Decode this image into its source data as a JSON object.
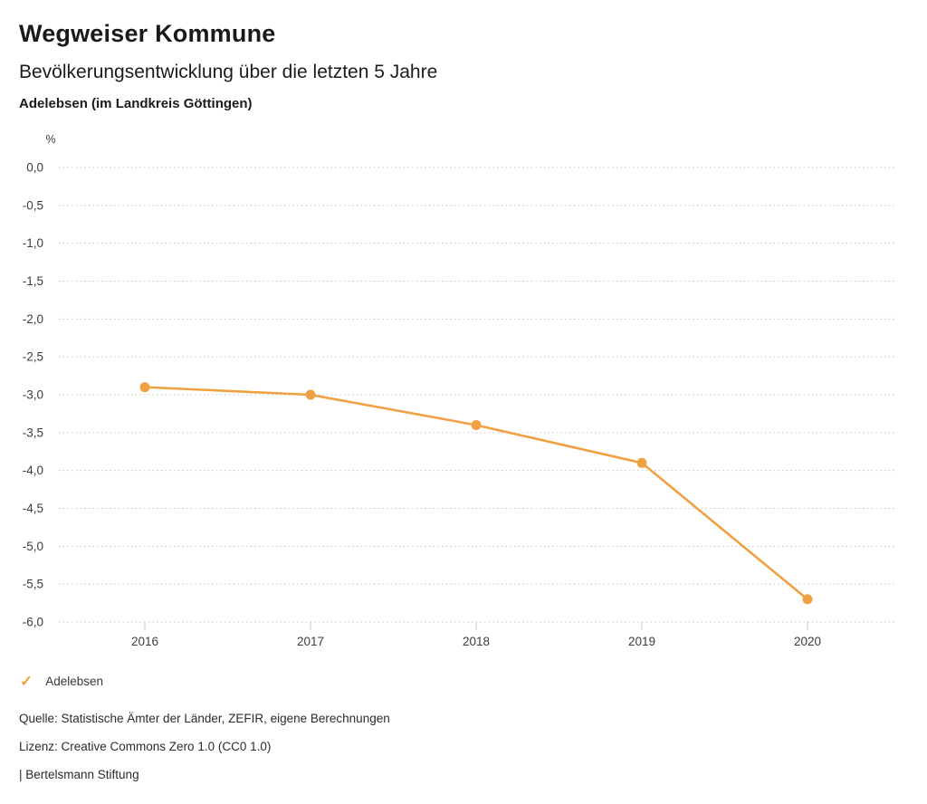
{
  "header": {
    "title": "Wegweiser Kommune",
    "subtitle": "Bevölkerungsentwicklung über die letzten 5 Jahre",
    "region": "Adelebsen (im Landkreis Göttingen)"
  },
  "chart_data": {
    "type": "line",
    "x": [
      "2016",
      "2017",
      "2018",
      "2019",
      "2020"
    ],
    "series": [
      {
        "name": "Adelebsen",
        "values": [
          -2.9,
          -3.0,
          -3.4,
          -3.9,
          -5.7
        ]
      }
    ],
    "unit_label": "%",
    "ylabel": "%",
    "xlabel": "",
    "ylim": [
      -6.0,
      0.0
    ],
    "ytick_step": 0.5,
    "ytick_labels": [
      "0,0",
      "-0,5",
      "-1,0",
      "-1,5",
      "-2,0",
      "-2,5",
      "-3,0",
      "-3,5",
      "-4,0",
      "-4,5",
      "-5,0",
      "-5,5",
      "-6,0"
    ],
    "grid": "horizontal-dotted",
    "legend_position": "bottom-left",
    "line_color": "#F0A143",
    "marker_color": "#F0A143",
    "grid_color": "#c4c4c4"
  },
  "legend": {
    "check_icon": "✓",
    "label": "Adelebsen"
  },
  "footer": {
    "source": "Quelle: Statistische Ämter der Länder, ZEFIR, eigene Berechnungen",
    "license": "Lizenz: Creative Commons Zero 1.0 (CC0 1.0)",
    "attribution": "| Bertelsmann Stiftung"
  }
}
